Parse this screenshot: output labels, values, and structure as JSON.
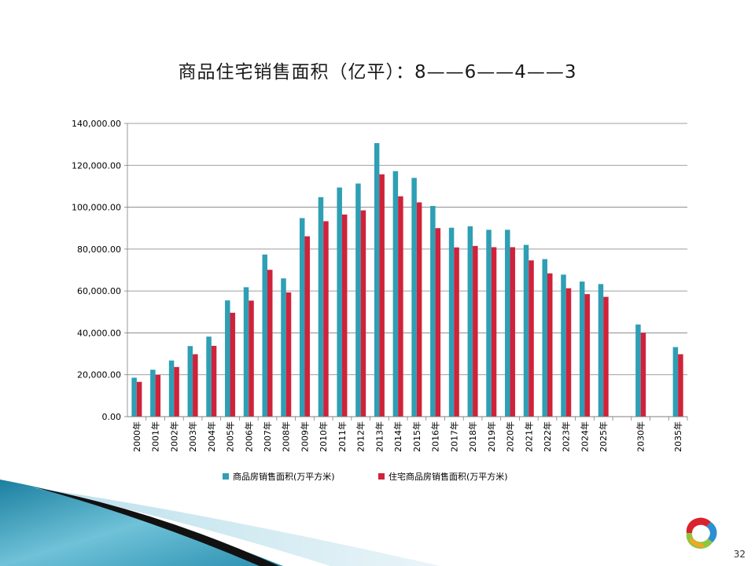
{
  "slide": {
    "title": "商品住宅销售面积（亿平）：8——6——4——3",
    "page_number": "32"
  },
  "colors": {
    "series1": "#2e9fb4",
    "series2": "#d0223a",
    "grid": "#7f7f7f",
    "text": "#000000"
  },
  "icons": [
    "ring-logo-icon"
  ],
  "chart_data": {
    "type": "bar",
    "title": "",
    "xlabel": "",
    "ylabel": "",
    "ylim": [
      0,
      140000
    ],
    "yticks": [
      "0.00",
      "20,000.00",
      "40,000.00",
      "60,000.00",
      "80,000.00",
      "100,000.00",
      "120,000.00",
      "140,000.00"
    ],
    "grid": true,
    "legend_position": "bottom",
    "categories": [
      "2000年",
      "2001年",
      "2002年",
      "2003年",
      "2004年",
      "2005年",
      "2006年",
      "2007年",
      "2008年",
      "2009年",
      "2010年",
      "2011年",
      "2012年",
      "2013年",
      "2014年",
      "2015年",
      "2016年",
      "2017年",
      "2018年",
      "2019年",
      "2020年",
      "2021年",
      "2022年",
      "2023年",
      "2024年",
      "2025年",
      "",
      "2030年",
      "",
      "2035年"
    ],
    "series": [
      {
        "name": "商品房销售面积(万平方米)",
        "values": [
          18600,
          22400,
          26800,
          33700,
          38200,
          55500,
          61800,
          77400,
          66000,
          94800,
          104800,
          109400,
          111300,
          130600,
          117200,
          114000,
          100600,
          90200,
          90900,
          89200,
          89200,
          82000,
          75200,
          67800,
          64500,
          63300,
          null,
          44000,
          null,
          33200
        ]
      },
      {
        "name": "住宅商品房销售面积(万平方米)",
        "values": [
          16600,
          19900,
          23700,
          29800,
          33800,
          49600,
          55400,
          70100,
          59300,
          86100,
          93300,
          96500,
          98500,
          115700,
          105200,
          102300,
          90000,
          80800,
          81500,
          80900,
          80900,
          74600,
          68400,
          61300,
          58500,
          57200,
          null,
          40000,
          null,
          29800
        ]
      }
    ]
  }
}
